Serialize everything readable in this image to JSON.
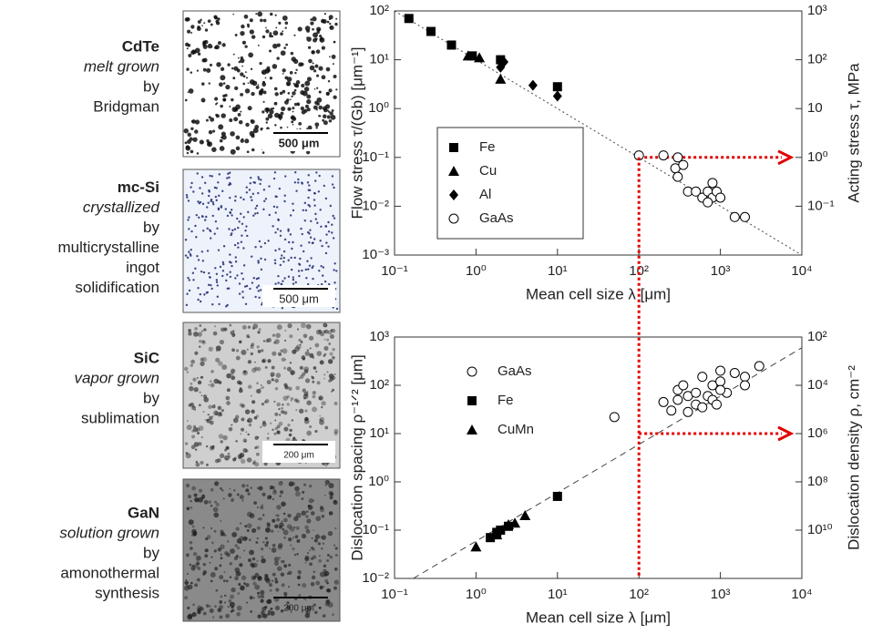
{
  "samples": [
    {
      "material": "CdTe",
      "growth": "melt grown",
      "by": "by",
      "process": [
        "Bridgman"
      ],
      "scale_bar": "500 μm"
    },
    {
      "material": "mc-Si",
      "growth": "crystallized",
      "by": "by",
      "process": [
        "multicrystalline",
        "ingot",
        "solidification"
      ],
      "scale_bar": "500 μm"
    },
    {
      "material": "SiC",
      "growth": "vapor grown",
      "by": "by",
      "process": [
        "sublimation"
      ],
      "scale_bar": "200 μm"
    },
    {
      "material": "GaN",
      "growth": "solution grown",
      "by": "by",
      "process": [
        "amonothermal",
        "synthesis"
      ],
      "scale_bar": "200 μm"
    }
  ],
  "chart_data": [
    {
      "type": "scatter",
      "log_x": true,
      "log_y": true,
      "xlabel": "Mean cell size λ [μm]",
      "ylabel": "Flow stress τ/(Gb) [μm⁻¹]",
      "y2label": "Acting stress τ, MPa",
      "xlim": [
        0.1,
        10000
      ],
      "xticks": [
        {
          "value": 0.1,
          "label": "10⁻¹"
        },
        {
          "value": 1,
          "label": "10⁰"
        },
        {
          "value": 10,
          "label": "10¹"
        },
        {
          "value": 100,
          "label": "10²"
        },
        {
          "value": 1000,
          "label": "10³"
        },
        {
          "value": 10000,
          "label": "10⁴"
        }
      ],
      "ylim": [
        0.001,
        100
      ],
      "yticks": [
        {
          "value": 0.001,
          "label": "10⁻³"
        },
        {
          "value": 0.01,
          "label": "10⁻²"
        },
        {
          "value": 0.1,
          "label": "10⁻¹"
        },
        {
          "value": 1,
          "label": "10⁰"
        },
        {
          "value": 10,
          "label": "10¹"
        },
        {
          "value": 100,
          "label": "10²"
        }
      ],
      "y2lim": [
        0.01,
        1000
      ],
      "y2ticks": [
        {
          "value": 0.1,
          "label": "10⁻¹"
        },
        {
          "value": 1,
          "label": "10⁰"
        },
        {
          "value": 10,
          "label": "10"
        },
        {
          "value": 100,
          "label": "10²"
        },
        {
          "value": 1000,
          "label": "10³"
        }
      ],
      "legend": "lower left",
      "legend_box": true,
      "series": [
        {
          "name": "Fe",
          "marker": "square",
          "color": "#000000",
          "x": [
            0.15,
            0.28,
            0.5,
            0.9,
            2,
            10
          ],
          "values": [
            70,
            38,
            20,
            12,
            10,
            2.8
          ]
        },
        {
          "name": "Cu",
          "marker": "triangle",
          "color": "#000000",
          "x": [
            0.8,
            1.1,
            2
          ],
          "values": [
            12,
            11,
            4
          ]
        },
        {
          "name": "Al",
          "marker": "diamond",
          "color": "#000000",
          "x": [
            2,
            2.2,
            5,
            10
          ],
          "values": [
            7,
            9,
            3,
            1.8
          ]
        },
        {
          "name": "GaAs",
          "marker": "circle-open",
          "color": "#000000",
          "x": [
            100,
            200,
            300,
            280,
            300,
            350,
            400,
            500,
            600,
            700,
            800,
            800,
            900,
            1000,
            700,
            1500,
            2000
          ],
          "values": [
            0.11,
            0.11,
            0.1,
            0.06,
            0.04,
            0.07,
            0.02,
            0.02,
            0.015,
            0.02,
            0.03,
            0.015,
            0.02,
            0.015,
            0.012,
            0.006,
            0.006
          ]
        }
      ],
      "guide_line": {
        "style": "dotted",
        "x": [
          0.1,
          10000
        ],
        "values": [
          100,
          0.001
        ]
      },
      "arrow": {
        "x": 100,
        "y": 0.1,
        "color": "#e00000"
      }
    },
    {
      "type": "scatter",
      "log_x": true,
      "log_y": true,
      "xlabel": "Mean cell size λ [μm]",
      "ylabel": "Dislocation spacing ρ⁻¹ᐟ² [μm]",
      "y2label": "Dislocation density ρ, cm⁻²",
      "xlim": [
        0.1,
        10000
      ],
      "xticks": [
        {
          "value": 0.1,
          "label": "10⁻¹"
        },
        {
          "value": 1,
          "label": "10⁰"
        },
        {
          "value": 10,
          "label": "10¹"
        },
        {
          "value": 100,
          "label": "10²"
        },
        {
          "value": 1000,
          "label": "10³"
        },
        {
          "value": 10000,
          "label": "10⁴"
        }
      ],
      "ylim": [
        0.01,
        1000
      ],
      "yticks": [
        {
          "value": 0.01,
          "label": "10⁻²"
        },
        {
          "value": 0.1,
          "label": "10⁻¹"
        },
        {
          "value": 1,
          "label": "10⁰"
        },
        {
          "value": 10,
          "label": "10¹"
        },
        {
          "value": 100,
          "label": "10²"
        },
        {
          "value": 1000,
          "label": "10³"
        }
      ],
      "y2lim": [
        1000000000000,
        100
      ],
      "y2ticks": [
        {
          "value": 100,
          "label": "10²"
        },
        {
          "value": 10000,
          "label": "10⁴"
        },
        {
          "value": 1000000,
          "label": "10⁶"
        },
        {
          "value": 100000000,
          "label": "10⁸"
        },
        {
          "value": 10000000000,
          "label": "10¹⁰"
        }
      ],
      "legend": "upper left",
      "legend_box": false,
      "series": [
        {
          "name": "GaAs",
          "marker": "circle-open",
          "color": "#000000",
          "x": [
            50,
            200,
            250,
            300,
            300,
            350,
            400,
            400,
            500,
            500,
            600,
            600,
            700,
            800,
            800,
            900,
            1000,
            1000,
            1200,
            1500,
            2000,
            2000,
            3000,
            1000
          ],
          "values": [
            22,
            45,
            30,
            80,
            50,
            100,
            60,
            28,
            40,
            70,
            150,
            35,
            60,
            100,
            50,
            40,
            200,
            120,
            70,
            180,
            150,
            100,
            250,
            80
          ]
        },
        {
          "name": "Fe",
          "marker": "square",
          "color": "#000000",
          "x": [
            1.5,
            1.8,
            2,
            2.5,
            10
          ],
          "values": [
            0.07,
            0.09,
            0.1,
            0.12,
            0.5
          ]
        },
        {
          "name": "CuMn",
          "marker": "triangle",
          "color": "#000000",
          "x": [
            1,
            1.8,
            2.5,
            3,
            4
          ],
          "values": [
            0.045,
            0.08,
            0.13,
            0.14,
            0.2
          ]
        }
      ],
      "guide_line": {
        "style": "dashed",
        "x": [
          0.17,
          10000
        ],
        "values": [
          0.01,
          600
        ]
      },
      "arrow": {
        "x": 100,
        "y": 10,
        "color": "#e00000"
      }
    }
  ]
}
